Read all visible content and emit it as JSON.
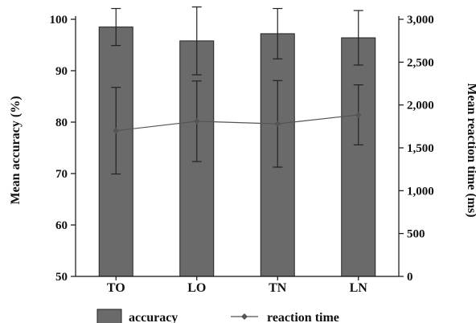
{
  "chart_data": {
    "type": "bar",
    "categories": [
      "TO",
      "LO",
      "TN",
      "LN"
    ],
    "series": [
      {
        "name": "accuracy",
        "kind": "bar",
        "axis": "left",
        "values": [
          98.5,
          95.8,
          97.2,
          96.4
        ],
        "error": [
          3.6,
          6.6,
          4.9,
          5.3
        ]
      },
      {
        "name": "reaction time",
        "kind": "line",
        "axis": "right",
        "values": [
          1700,
          1810,
          1780,
          1885
        ],
        "error": [
          505,
          470,
          505,
          350
        ]
      }
    ],
    "ylabel": "Mean accuracy (%)",
    "y2label": "Mean reaction time (ms)",
    "ylim": [
      50,
      100
    ],
    "y2lim": [
      0,
      3000
    ],
    "yticks": [
      "50",
      "60",
      "70",
      "80",
      "90",
      "100"
    ],
    "y2ticks": [
      "0",
      "500",
      "1,000",
      "1,500",
      "2,000",
      "2,500",
      "3,000"
    ],
    "grid": false,
    "legend": "bottom",
    "colors": {
      "bar_fill": "#6a6a6a",
      "bar_stroke": "#222222",
      "line": "#555555",
      "marker": "#555555",
      "axis": "#111111"
    }
  }
}
